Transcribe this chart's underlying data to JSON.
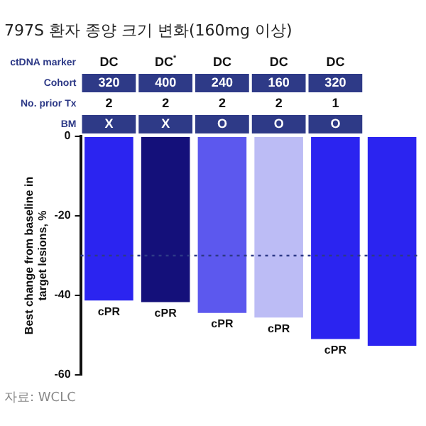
{
  "chart_data": {
    "type": "bar",
    "title": "797S 환자 종양 크기 변화(160mg 이상)",
    "ylabel": "Best change from baseline in target lesions, %",
    "categories": [
      null,
      null,
      null,
      null,
      null,
      null
    ],
    "values": [
      -41.3,
      -41.7,
      -44.4,
      -45.6,
      -51,
      -52.7
    ],
    "colors": [
      "#2b24f0",
      "#14107a",
      "#5c58ee",
      "#bcbcf5",
      "#2b24f0",
      "#2b24f0"
    ],
    "value_labels": [
      "cPR",
      "cPR",
      "cPR",
      "cPR",
      "cPR",
      null
    ],
    "ylim": [
      -60,
      0
    ],
    "yticks": [
      0,
      -20,
      -40,
      -60
    ],
    "grid": false,
    "legend": false,
    "ref_lines": [
      {
        "axis": "y",
        "value": -30,
        "color": "#2e3a87",
        "line_style": "dotted"
      }
    ],
    "annotations": [
      "ctDNA marker",
      "DC",
      "DC$^{*}$",
      "DC",
      "DC",
      "DC",
      "Cohort",
      "320",
      "400",
      "240",
      "160",
      "320",
      "No. prior Tx",
      "2",
      "2",
      "2",
      "2",
      "1",
      "BM",
      "X",
      "X",
      "O",
      "O",
      "O",
      "자료: WCLC"
    ]
  }
}
